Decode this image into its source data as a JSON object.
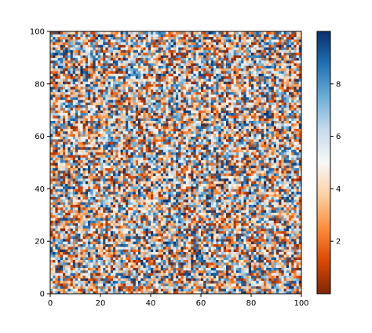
{
  "chart_data": {
    "type": "heatmap",
    "title": "",
    "xlabel": "",
    "ylabel": "",
    "xlim": [
      0,
      100
    ],
    "ylim": [
      0,
      100
    ],
    "grid_size": [
      100,
      100
    ],
    "value_range": [
      0,
      10
    ],
    "pattern": "uniform random noise, no visible structure",
    "x_ticks": [
      "0",
      "20",
      "40",
      "60",
      "80",
      "100"
    ],
    "y_ticks": [
      "0",
      "20",
      "40",
      "60",
      "80",
      "100"
    ],
    "colorbar": {
      "orientation": "vertical",
      "placement": "right",
      "range": [
        0,
        10
      ],
      "ticks": [
        "2",
        "4",
        "6",
        "8"
      ],
      "colormap": "orange-white-blue diverging",
      "colors": [
        "#7f2704",
        "#d94801",
        "#fd8d3c",
        "#fdd0a2",
        "#f7f7f7",
        "#c6dbef",
        "#6baed6",
        "#2171b5",
        "#08306b"
      ]
    }
  }
}
